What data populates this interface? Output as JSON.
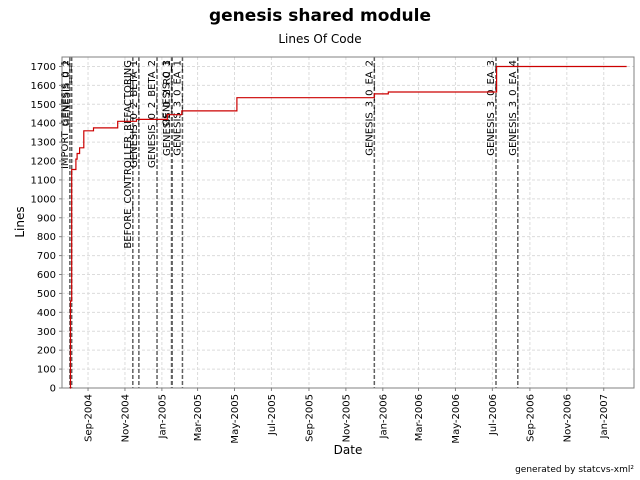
{
  "chart_data": {
    "type": "line",
    "title": "genesis shared module",
    "subtitle": "Lines Of Code",
    "xlabel": "Date",
    "ylabel": "Lines",
    "ylim": [
      0,
      1750
    ],
    "xlim": [
      "2004-07-20",
      "2007-02-20"
    ],
    "y_ticks": [
      0,
      100,
      200,
      300,
      400,
      500,
      600,
      700,
      800,
      900,
      1000,
      1100,
      1200,
      1300,
      1400,
      1500,
      1600,
      1700
    ],
    "x_ticks": [
      {
        "date": "2004-09-01",
        "label": "Sep-2004"
      },
      {
        "date": "2004-11-01",
        "label": "Nov-2004"
      },
      {
        "date": "2005-01-01",
        "label": "Jan-2005"
      },
      {
        "date": "2005-03-01",
        "label": "Mar-2005"
      },
      {
        "date": "2005-05-01",
        "label": "May-2005"
      },
      {
        "date": "2005-07-01",
        "label": "Jul-2005"
      },
      {
        "date": "2005-09-01",
        "label": "Sep-2005"
      },
      {
        "date": "2005-11-01",
        "label": "Nov-2005"
      },
      {
        "date": "2006-01-01",
        "label": "Jan-2006"
      },
      {
        "date": "2006-03-01",
        "label": "Mar-2006"
      },
      {
        "date": "2006-05-01",
        "label": "May-2006"
      },
      {
        "date": "2006-07-01",
        "label": "Jul-2006"
      },
      {
        "date": "2006-09-01",
        "label": "Sep-2006"
      },
      {
        "date": "2006-11-01",
        "label": "Nov-2006"
      },
      {
        "date": "2007-01-01",
        "label": "Jan-2007"
      }
    ],
    "grid": true,
    "series": [
      {
        "color": "#cc0000",
        "points": [
          {
            "x": "2004-08-02",
            "y": 0
          },
          {
            "x": "2004-08-03",
            "y": 460
          },
          {
            "x": "2004-08-05",
            "y": 1155
          },
          {
            "x": "2004-08-12",
            "y": 1210
          },
          {
            "x": "2004-08-14",
            "y": 1240
          },
          {
            "x": "2004-08-18",
            "y": 1270
          },
          {
            "x": "2004-08-25",
            "y": 1360
          },
          {
            "x": "2004-09-10",
            "y": 1375
          },
          {
            "x": "2004-10-20",
            "y": 1410
          },
          {
            "x": "2004-11-20",
            "y": 1420
          },
          {
            "x": "2005-01-10",
            "y": 1445
          },
          {
            "x": "2005-02-03",
            "y": 1465
          },
          {
            "x": "2005-05-05",
            "y": 1535
          },
          {
            "x": "2005-12-18",
            "y": 1555
          },
          {
            "x": "2006-01-10",
            "y": 1565
          },
          {
            "x": "2006-07-08",
            "y": 1700
          },
          {
            "x": "2007-02-08",
            "y": 1700
          }
        ]
      }
    ],
    "markers": [
      {
        "date": "2004-08-02",
        "label": "IMPORT_GENESIS_0_1"
      },
      {
        "date": "2004-08-05",
        "label": "GENESIS_0_2"
      },
      {
        "date": "2004-11-14",
        "label": "BEFORE_CONTROLLER_REFACTORING"
      },
      {
        "date": "2004-11-24",
        "label": "GENESIS_0_2_BETA_1"
      },
      {
        "date": "2004-12-24",
        "label": "GENESIS_0_2_BETA_2"
      },
      {
        "date": "2005-01-17",
        "label": "GENESIS_0_3"
      },
      {
        "date": "2005-01-18",
        "label": "GENESIS_0_2_RC_1"
      },
      {
        "date": "2005-02-04",
        "label": "GENESIS_3_0_EA_1"
      },
      {
        "date": "2005-12-18",
        "label": "GENESIS_3_0_EA_2"
      },
      {
        "date": "2006-07-07",
        "label": "GENESIS_3_0_EA_3"
      },
      {
        "date": "2006-08-12",
        "label": "GENESIS_3_0_EA_4"
      }
    ]
  },
  "footer": "generated by statcvs-xml²"
}
